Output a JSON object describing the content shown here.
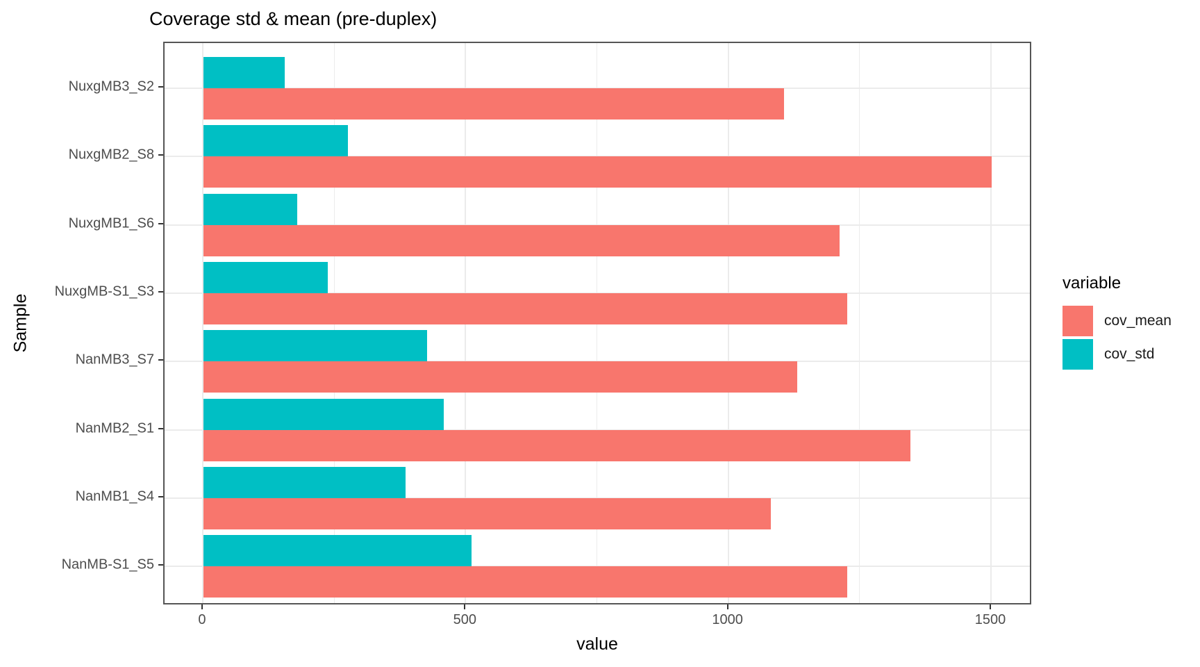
{
  "chart_data": {
    "type": "bar",
    "orientation": "horizontal",
    "title": "Coverage std & mean (pre-duplex)",
    "xlabel": "value",
    "ylabel": "Sample",
    "categories_top_to_bottom": [
      "NuxgMB3_S2",
      "NuxgMB2_S8",
      "NuxgMB1_S6",
      "NuxgMB-S1_S3",
      "NanMB3_S7",
      "NanMB2_S1",
      "NanMB1_S4",
      "NanMB-S1_S5"
    ],
    "series": [
      {
        "name": "cov_mean",
        "color": "#F8766D",
        "values": [
          1105,
          1500,
          1210,
          1225,
          1130,
          1345,
          1080,
          1225
        ]
      },
      {
        "name": "cov_std",
        "color": "#00BFC4",
        "values": [
          155,
          275,
          178,
          236,
          425,
          457,
          385,
          510
        ]
      }
    ],
    "x_major_ticks": [
      0,
      500,
      1000,
      1500
    ],
    "x_minor_gridlines": [
      250,
      750,
      1250
    ],
    "xlim": [
      -74,
      1578
    ],
    "grid": true,
    "legend": {
      "title": "variable",
      "position": "right"
    }
  }
}
